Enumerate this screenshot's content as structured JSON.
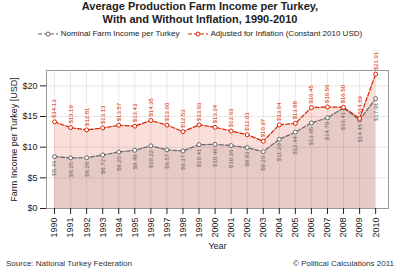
{
  "chart_data": {
    "type": "line",
    "title": "Average Production Farm Income per Turkey,",
    "subtitle": "With and Without Inflation, 1990-2010",
    "xlabel": "Year",
    "ylabel": "Farm Income per Turkey [USD]",
    "annotations": [
      "Source: National Turkey Federation",
      "© Political Calculations 2011"
    ],
    "x": [
      1990,
      1991,
      1992,
      1993,
      1994,
      1995,
      1996,
      1997,
      1998,
      1999,
      2000,
      2001,
      2002,
      2003,
      2004,
      2005,
      2006,
      2007,
      2008,
      2009,
      2010
    ],
    "xlim": [
      1989.5,
      2010.8
    ],
    "xticks": [
      1990,
      1991,
      1992,
      1993,
      1994,
      1995,
      1996,
      1997,
      1998,
      1999,
      2000,
      2001,
      2002,
      2003,
      2004,
      2005,
      2006,
      2007,
      2008,
      2009,
      2010
    ],
    "ylim": [
      0,
      22.5
    ],
    "yticks": [
      {
        "value": 0,
        "label": "$0"
      },
      {
        "value": 5,
        "label": "$5"
      },
      {
        "value": 10,
        "label": "$10"
      },
      {
        "value": 15,
        "label": "$15"
      },
      {
        "value": 20,
        "label": "$20"
      }
    ],
    "grid": true,
    "legend": "top",
    "data_labels": true,
    "series": [
      {
        "name": "Nominal Farm Income per Turkey",
        "color": "#666666",
        "marker": "circle",
        "line_style": "dashed",
        "values": [
          8.46,
          8.25,
          8.28,
          8.72,
          9.2,
          9.49,
          10.22,
          9.57,
          9.37,
          10.41,
          10.46,
          10.26,
          9.93,
          9.26,
          11.29,
          12.44,
          13.95,
          14.79,
          16.41,
          14.45,
          17.91
        ],
        "value_labels": [
          "$8.46",
          "$8.25",
          "$8.28",
          "$8.72",
          "$9.20",
          "$9.49",
          "$10.22",
          "$9.57",
          "$9.37",
          "$10.41",
          "$10.46",
          "$10.26",
          "$9.93",
          "$9.26",
          "$11.29",
          "$12.44",
          "$13.95",
          "$14.79",
          "$16.41",
          "$14.45",
          "$17.91"
        ]
      },
      {
        "name": "Adjusted for Inflation (Constant 2010 USD)",
        "color": "#dd2200",
        "marker": "circle",
        "line_style": "dashed",
        "values": [
          14.13,
          13.19,
          12.81,
          13.13,
          13.57,
          13.43,
          14.35,
          13.6,
          12.53,
          13.63,
          13.24,
          12.63,
          12.03,
          10.97,
          13.64,
          13.88,
          16.45,
          16.56,
          16.5,
          14.69,
          21.91
        ],
        "value_labels": [
          "$14.13",
          "$13.19",
          "$12.81",
          "$13.13",
          "$13.57",
          "$13.43",
          "$14.35",
          "$13.60",
          "$12.53",
          "$13.63",
          "$13.24",
          "$12.63",
          "$12.03",
          "$10.97",
          "$13.64",
          "$13.88",
          "$16.45",
          "$16.56",
          "$16.50",
          "$14.69",
          "$21.91"
        ]
      }
    ]
  }
}
